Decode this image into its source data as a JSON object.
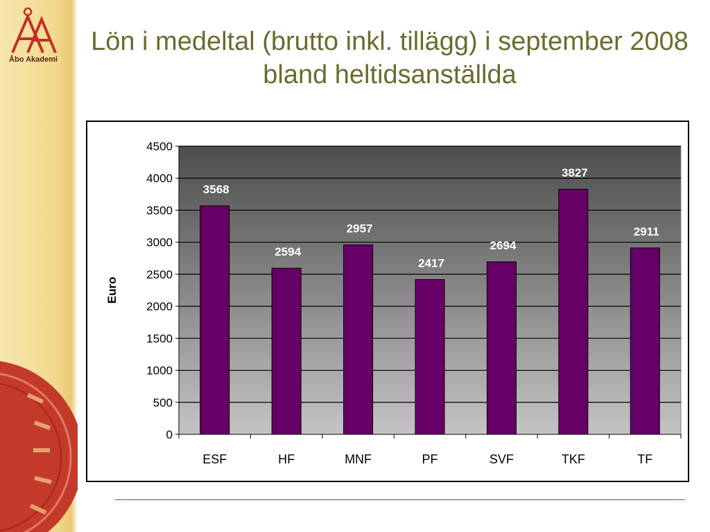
{
  "logo": {
    "text": "Åbo Akademi",
    "brand_color": "#c0302a"
  },
  "slide": {
    "title": "Lön i medeltal (brutto inkl. tillägg) i september 2008 bland heltidsanställda"
  },
  "chart_data": {
    "type": "bar",
    "title": "",
    "xlabel": "",
    "ylabel": "Euro",
    "categories": [
      "ESF",
      "HF",
      "MNF",
      "PF",
      "SVF",
      "TKF",
      "TF"
    ],
    "series": [
      {
        "values": [
          3568,
          2594,
          2957,
          2417,
          2694,
          3827,
          2911
        ]
      }
    ],
    "ylim": [
      0,
      4500
    ],
    "yticks": [
      0,
      500,
      1000,
      1500,
      2000,
      2500,
      3000,
      3500,
      4000,
      4500
    ],
    "grid": true,
    "legend": "none",
    "data_labels": true,
    "bar_color": "#660066",
    "plot_background": "gradient dark gray (top) to light gray (bottom)"
  }
}
